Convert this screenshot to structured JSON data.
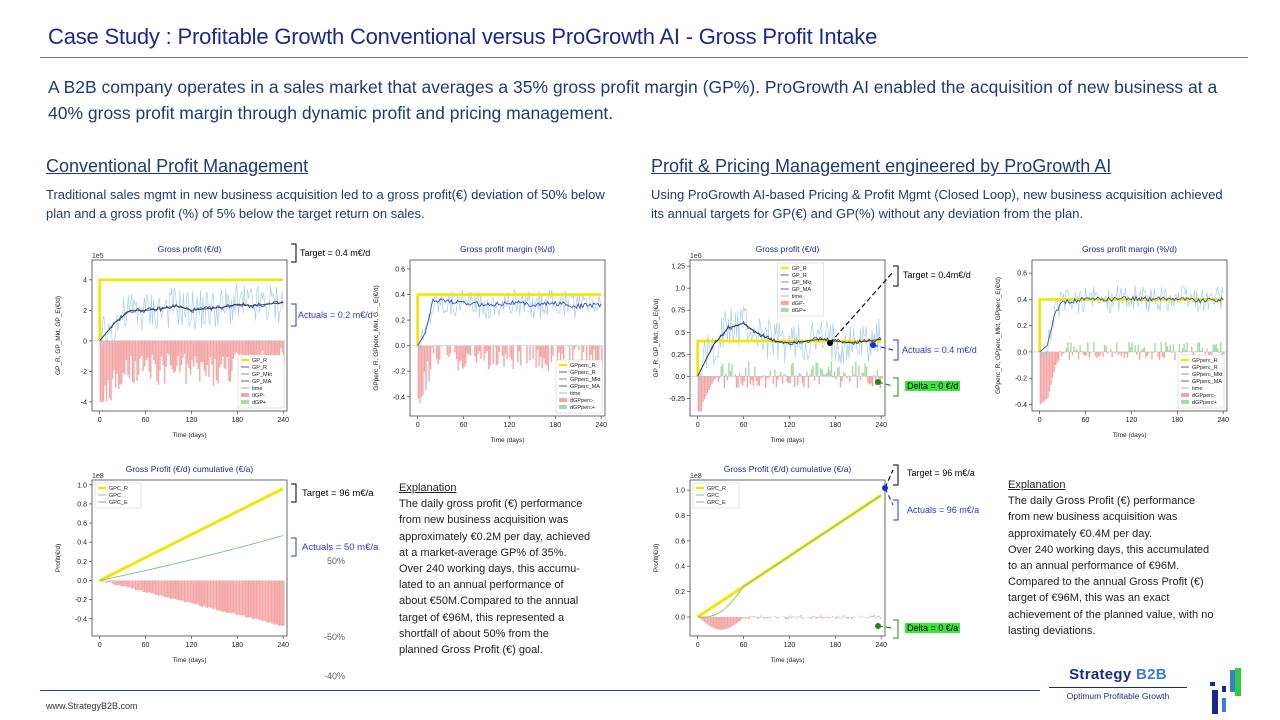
{
  "page": {
    "title": "Case Study : Profitable Growth Conventional versus ProGrowth AI - Gross Profit Intake",
    "intro": "A B2B company operates in a sales market that averages a 35% gross profit margin (GP%). ProGrowth AI enabled the acquisition of new business at a 40% gross profit margin through dynamic profit and pricing management."
  },
  "left": {
    "heading": "Conventional Profit Management",
    "description": "Traditional sales mgmt in new business acquisition led to a gross profit(€) deviation of 50% below plan and a gross profit (%) of 5% below the target return on sales.",
    "explanation": {
      "heading": "Explanation",
      "lines": [
        "The daily gross profit (€) performance",
        "from new business acquisition was",
        "approximately €0.2M per day, achieved",
        "at a market-average GP% of 35%.",
        "Over 240 working days, this accumu-",
        "lated to an annual performance of",
        "about €50M.Compared to the annual",
        "target of €96M, this represented a",
        "shortfall of about 50% from the",
        "planned Gross Profit (€) goal."
      ]
    },
    "annotations": {
      "gp_target": "Target = 0.4 m€/d",
      "gp_actuals": "Actuals = 0.2 m€/d",
      "cum_target": "Target = 96 m€/a",
      "cum_actuals": "Actuals = 50 m€/a",
      "pct_50": "50%",
      "pct_neg50": "-50%",
      "pct_neg40": "-40%"
    }
  },
  "right": {
    "heading": "Profit & Pricing  Management engineered by ProGrowth AI",
    "description": "Using ProGrowth AI-based Pricing & Profit Mgmt (Closed Loop), new business acquisition achieved its annual targets for GP(€) and GP(%) without any deviation from the plan.",
    "explanation": {
      "heading": "Explanation",
      "lines": [
        "The daily Gross Profit (€) performance",
        "from new business acquisition was",
        "approximately €0.4M per day.",
        "Over 240 working days, this accumulated",
        "to an annual performance of €96M.",
        "Compared to the annual Gross Profit (€)",
        "target of €96M, this was an exact",
        "achievement of the planned value, with no",
        "lasting deviations."
      ]
    },
    "annotations": {
      "gp_target": "Target = 0.4m€/d",
      "gp_actuals": "Actuals = 0.4 m€/d",
      "gp_delta": "Delta = 0 €/d",
      "cum_target": "Target = 96 m€/a",
      "cum_actuals": "Actuals = 96 m€/a",
      "cum_delta": "Delta = 0 €/a"
    }
  },
  "footer": {
    "url": "www.StrategyB2B.com",
    "brand_name_a": "Strategy",
    "brand_name_b": "B2B",
    "brand_tagline": "Optimum Profitable Growth"
  },
  "colors": {
    "title": "#1a2a8a",
    "text_blue": "#1f3b73",
    "target_yellow": "#f2e600",
    "neg_red": "#f4a6a6",
    "pos_green": "#a9d8a9",
    "mkt_light_blue": "#a9cfe6",
    "ma_blue": "#3a4fc4",
    "delta_green": "#39e639"
  },
  "chart_data": [
    {
      "id": "conv_gp",
      "type": "line",
      "title": "Gross profit (€/d)",
      "xlabel": "Time (days)",
      "ylabel": "GP_R, GP_Mkt, GP_E(€/d)",
      "exponent": "1e5",
      "xlim": [
        -10,
        245
      ],
      "ylim": [
        -4.6,
        5.3
      ],
      "xticks": [
        0,
        60,
        120,
        180,
        240
      ],
      "yticks": [
        -4,
        -2,
        0,
        2,
        4
      ],
      "legend": [
        "GP_R",
        "GP_R",
        "GP_Mkt",
        "GP_MA",
        "time",
        "dGP-",
        "dGP+"
      ],
      "legend_position": "lower-right",
      "target": 4,
      "x": [
        0,
        20,
        40,
        60,
        80,
        100,
        120,
        140,
        160,
        180,
        200,
        220,
        240
      ],
      "series": [
        {
          "name": "GP_MA",
          "values": [
            0,
            1.2,
            2.0,
            2.0,
            2.1,
            2.3,
            2.0,
            2.1,
            2.2,
            2.4,
            2.3,
            2.4,
            2.5
          ]
        },
        {
          "name": "dGP-",
          "values": [
            -4.0,
            -2.6,
            -2.0,
            -2.0,
            -1.9,
            -1.8,
            -2.0,
            -1.9,
            -1.8,
            -1.7,
            -1.8,
            -1.7,
            -1.6
          ]
        }
      ]
    },
    {
      "id": "conv_gm",
      "type": "line",
      "title": "Gross profit margin (%/d)",
      "xlabel": "Time (days)",
      "ylabel": "GPperc_R, GPperc_Mkt, G..._E(€/d)",
      "xlim": [
        -10,
        245
      ],
      "ylim": [
        -0.55,
        0.67
      ],
      "xticks": [
        0,
        60,
        120,
        180,
        240
      ],
      "yticks": [
        -0.4,
        -0.2,
        0.0,
        0.2,
        0.4,
        0.6
      ],
      "legend": [
        "GPperc_R",
        "GPperc_R",
        "GPperc_Mkt",
        "GPperc_MA",
        "time",
        "dGPperc-",
        "dGPperc+"
      ],
      "legend_position": "lower-right",
      "target": 0.4,
      "x": [
        0,
        10,
        20,
        30,
        60,
        90,
        120,
        150,
        180,
        210,
        240
      ],
      "series": [
        {
          "name": "GPperc_MA",
          "values": [
            0,
            0.1,
            0.35,
            0.36,
            0.33,
            0.32,
            0.34,
            0.32,
            0.33,
            0.31,
            0.32
          ]
        }
      ]
    },
    {
      "id": "conv_cum",
      "type": "line",
      "title": "Gross Profit (€/d) cumulative (€/a)",
      "xlabel": "Time (days)",
      "ylabel": "Profit(€/d)",
      "exponent": "1e8",
      "xlim": [
        -10,
        245
      ],
      "ylim": [
        -0.58,
        1.05
      ],
      "xticks": [
        0,
        60,
        120,
        180,
        240
      ],
      "yticks": [
        -0.4,
        -0.2,
        0.0,
        0.2,
        0.4,
        0.6,
        0.8,
        1.0
      ],
      "legend": [
        "GPC_R",
        "GPC",
        "GPC_E"
      ],
      "legend_position": "top-left",
      "x": [
        0,
        240
      ],
      "series": [
        {
          "name": "GPC_R",
          "values": [
            0,
            0.96
          ]
        },
        {
          "name": "GPC",
          "values": [
            0,
            0.47
          ]
        },
        {
          "name": "GPC_E",
          "values": [
            0,
            -0.48
          ]
        }
      ]
    },
    {
      "id": "ai_gp",
      "type": "line",
      "title": "Gross profit (€/d)",
      "xlabel": "Time (days)",
      "ylabel": "GP_R, GP_Mkt, GP_E(€/d)",
      "exponent": "1e6",
      "xlim": [
        -10,
        245
      ],
      "ylim": [
        -0.45,
        1.32
      ],
      "xticks": [
        0,
        60,
        120,
        180,
        240
      ],
      "yticks": [
        -0.25,
        0.0,
        0.25,
        0.5,
        0.75,
        1.0,
        1.25
      ],
      "legend": [
        "GP_R",
        "GP_R",
        "GP_Mkt",
        "GP_MA",
        "time",
        "dGP-",
        "dGP+"
      ],
      "legend_position": "top-right",
      "target": 0.4,
      "x": [
        0,
        20,
        40,
        60,
        80,
        100,
        120,
        140,
        160,
        180,
        200,
        220,
        240
      ],
      "series": [
        {
          "name": "GP_MA",
          "values": [
            0,
            0.35,
            0.55,
            0.6,
            0.48,
            0.4,
            0.38,
            0.4,
            0.42,
            0.4,
            0.38,
            0.4,
            0.42
          ]
        }
      ]
    },
    {
      "id": "ai_gm",
      "type": "line",
      "title": "Gross profit margin (%/d)",
      "xlabel": "Time (days)",
      "ylabel": "GPperc_R, GPperc_Mkt, GPperc_E(€/d)",
      "xlim": [
        -10,
        245
      ],
      "ylim": [
        -0.45,
        0.7
      ],
      "xticks": [
        0,
        60,
        120,
        180,
        240
      ],
      "yticks": [
        -0.4,
        -0.2,
        0.0,
        0.2,
        0.4,
        0.6
      ],
      "legend": [
        "GPperc_R",
        "GPperc_R",
        "GPperc_Mkt",
        "GPperc_MA",
        "time",
        "dGPperc-",
        "dGPperc+"
      ],
      "legend_position": "lower-right",
      "target": 0.4,
      "x": [
        0,
        10,
        20,
        30,
        60,
        90,
        120,
        150,
        180,
        210,
        240
      ],
      "series": [
        {
          "name": "GPperc_MA",
          "values": [
            0,
            0.05,
            0.3,
            0.38,
            0.4,
            0.4,
            0.41,
            0.4,
            0.41,
            0.39,
            0.4
          ]
        }
      ]
    },
    {
      "id": "ai_cum",
      "type": "line",
      "title": "Gross Profit (€/d) cumulative (€/a)",
      "xlabel": "Time (days)",
      "ylabel": "Profit(€/d)",
      "exponent": "1e8",
      "xlim": [
        -10,
        245
      ],
      "ylim": [
        -0.15,
        1.08
      ],
      "xticks": [
        0,
        60,
        120,
        180,
        240
      ],
      "yticks": [
        0.0,
        0.2,
        0.4,
        0.6,
        0.8,
        1.0
      ],
      "legend": [
        "GPC_R",
        "GPC",
        "GPC_E"
      ],
      "legend_position": "top-left",
      "x": [
        0,
        240
      ],
      "series": [
        {
          "name": "GPC_R",
          "values": [
            0,
            0.96
          ]
        },
        {
          "name": "GPC",
          "values": [
            0,
            0.96
          ]
        },
        {
          "name": "GPC_E",
          "values": [
            0,
            0.0
          ]
        }
      ]
    }
  ]
}
